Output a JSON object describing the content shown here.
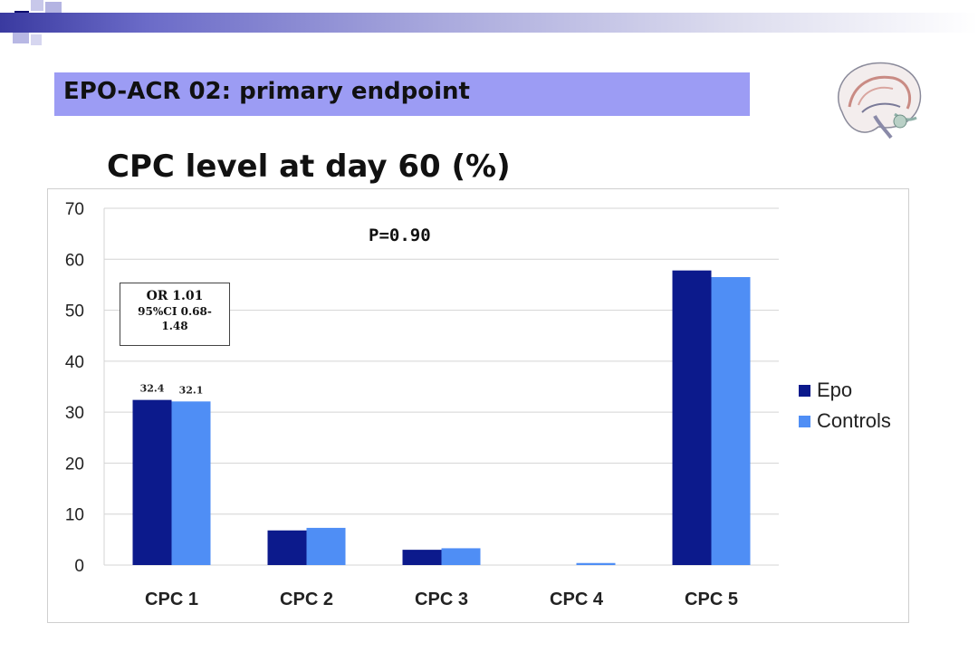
{
  "slide": {
    "title": "EPO-ACR 02: primary endpoint",
    "heading": "CPC level at day 60 (%)",
    "p_value": "P=0.90",
    "odds_ratio": {
      "line1": "OR 1.01",
      "line2": "95%CI 0.68-",
      "line3": "1.48"
    }
  },
  "colors": {
    "title_box": "#9c9cf4",
    "epo": "#0c1a8c",
    "controls": "#4f8ef5"
  },
  "chart_data": {
    "type": "bar",
    "title": "",
    "xlabel": "",
    "ylabel": "",
    "categories": [
      "CPC 1",
      "CPC 2",
      "CPC 3",
      "CPC 4",
      "CPC 5"
    ],
    "series": [
      {
        "name": "Epo",
        "values": [
          32.4,
          6.8,
          3.0,
          0,
          57.8
        ]
      },
      {
        "name": "Controls",
        "values": [
          32.1,
          7.3,
          3.3,
          0.4,
          56.5
        ]
      }
    ],
    "data_labels": [
      {
        "series": 0,
        "index": 0,
        "text": "32.4"
      },
      {
        "series": 1,
        "index": 0,
        "text": "32.1"
      }
    ],
    "ylim": [
      0,
      70
    ],
    "yticks": [
      0,
      10,
      20,
      30,
      40,
      50,
      60,
      70
    ],
    "grid": true,
    "legend_position": "right"
  }
}
